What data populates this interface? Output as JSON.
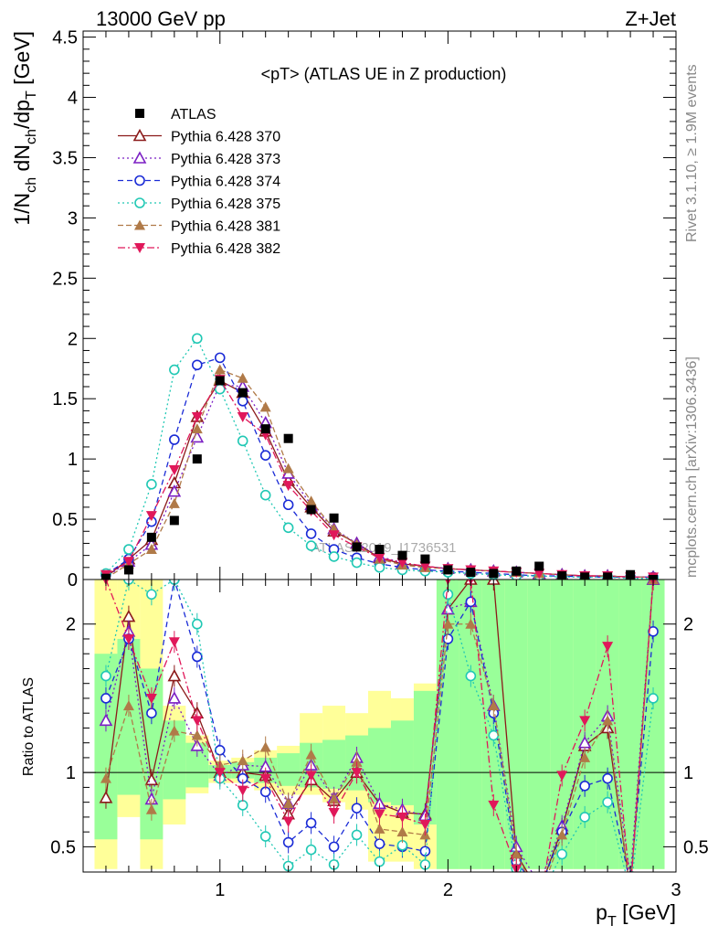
{
  "header": {
    "left": "13000 GeV pp",
    "right": "Z+Jet"
  },
  "side_text": {
    "top": "Rivet 3.1.10, ≥ 1.9M events",
    "bottom": "mcplots.cern.ch [arXiv:1306.3436]"
  },
  "watermark": "ATLAS_2019_I1736531",
  "chart_data": [
    {
      "type": "line",
      "title": "<pT> (ATLAS UE in Z production)",
      "ylabel": "1/N_ch dN_ch/dp_T [GeV]",
      "xlim": [
        0.4,
        3.0
      ],
      "ylim": [
        0,
        4.55
      ],
      "yticks": [
        "0",
        "0.5",
        "1",
        "1.5",
        "2",
        "2.5",
        "3",
        "3.5",
        "4",
        "4.5"
      ],
      "legend_position": "top-left",
      "x": [
        0.5,
        0.6,
        0.7,
        0.8,
        0.9,
        1.0,
        1.1,
        1.2,
        1.3,
        1.4,
        1.5,
        1.6,
        1.7,
        1.8,
        1.9,
        2.0,
        2.1,
        2.2,
        2.3,
        2.4,
        2.5,
        2.6,
        2.7,
        2.8,
        2.9
      ],
      "data": {
        "name": "ATLAS",
        "values": [
          0.01,
          0.08,
          0.35,
          0.49,
          1.0,
          1.65,
          1.55,
          1.25,
          1.17,
          0.58,
          0.51,
          0.27,
          0.25,
          0.2,
          0.17,
          0.08,
          0.06,
          0.05,
          0.07,
          0.11,
          0.03,
          0.02,
          0.02,
          0.04,
          0.0
        ]
      },
      "series": [
        {
          "name": "Pythia 6.428 370",
          "color": "#8b1a1a",
          "marker": "triangle-open",
          "dash": "",
          "values": [
            0.02,
            0.17,
            0.33,
            0.8,
            1.35,
            1.65,
            1.55,
            1.23,
            0.82,
            0.6,
            0.4,
            0.3,
            0.18,
            0.13,
            0.11,
            0.09,
            0.08,
            0.07,
            0.06,
            0.05,
            0.04,
            0.03,
            0.03,
            0.02,
            0.02
          ]
        },
        {
          "name": "Pythia 6.428 373",
          "color": "#7b1fc4",
          "marker": "triangle-open",
          "dash": "2,3",
          "values": [
            0.02,
            0.15,
            0.29,
            0.73,
            1.18,
            1.62,
            1.6,
            1.3,
            0.88,
            0.62,
            0.42,
            0.3,
            0.19,
            0.14,
            0.11,
            0.09,
            0.08,
            0.07,
            0.06,
            0.05,
            0.04,
            0.03,
            0.03,
            0.02,
            0.02
          ]
        },
        {
          "name": "Pythia 6.428 374",
          "color": "#1a2bd6",
          "marker": "circle-open",
          "dash": "6,4",
          "values": [
            0.04,
            0.17,
            0.48,
            1.16,
            1.78,
            1.84,
            1.48,
            1.03,
            0.62,
            0.38,
            0.25,
            0.18,
            0.13,
            0.1,
            0.08,
            0.07,
            0.06,
            0.05,
            0.04,
            0.03,
            0.03,
            0.02,
            0.02,
            0.02,
            0.02
          ]
        },
        {
          "name": "Pythia 6.428 375",
          "color": "#20c8b4",
          "marker": "circle-open",
          "dash": "2,3",
          "values": [
            0.05,
            0.25,
            0.79,
            1.74,
            2.0,
            1.58,
            1.15,
            0.7,
            0.43,
            0.28,
            0.19,
            0.14,
            0.1,
            0.08,
            0.07,
            0.06,
            0.05,
            0.04,
            0.03,
            0.03,
            0.02,
            0.02,
            0.02,
            0.01,
            0.01
          ]
        },
        {
          "name": "Pythia 6.428 381",
          "color": "#b07a48",
          "marker": "triangle-up",
          "dash": "6,3",
          "values": [
            0.01,
            0.13,
            0.25,
            0.63,
            1.25,
            1.74,
            1.67,
            1.43,
            0.92,
            0.65,
            0.42,
            0.29,
            0.17,
            0.12,
            0.1,
            0.09,
            0.08,
            0.07,
            0.06,
            0.05,
            0.04,
            0.03,
            0.03,
            0.02,
            0.02
          ]
        },
        {
          "name": "Pythia 6.428 382",
          "color": "#e0185a",
          "marker": "triangle-down",
          "dash": "8,3,2,3",
          "values": [
            0.04,
            0.15,
            0.53,
            0.91,
            1.35,
            1.66,
            1.35,
            1.2,
            0.78,
            0.57,
            0.37,
            0.27,
            0.18,
            0.14,
            0.11,
            0.09,
            0.08,
            0.07,
            0.06,
            0.05,
            0.04,
            0.03,
            0.03,
            0.02,
            0.02
          ]
        }
      ]
    },
    {
      "type": "line",
      "ylabel": "Ratio to ATLAS",
      "xlabel": "p_T [GeV]",
      "xlim": [
        0.4,
        3.0
      ],
      "ylim": [
        0.33,
        2.3
      ],
      "xticks": [
        "1",
        "2",
        "3"
      ],
      "yticks": [
        "0.5",
        "1",
        "2"
      ],
      "band_green": [
        [
          0.55,
          1.8
        ],
        [
          0.85,
          1.9
        ],
        [
          0.55,
          1.7
        ],
        [
          0.82,
          1.35
        ],
        [
          0.9,
          1.2
        ],
        [
          0.96,
          1.05
        ],
        [
          0.96,
          1.07
        ],
        [
          0.93,
          1.1
        ],
        [
          0.91,
          1.13
        ],
        [
          0.9,
          1.2
        ],
        [
          0.89,
          1.22
        ],
        [
          0.88,
          1.25
        ],
        [
          0.8,
          1.3
        ],
        [
          0.78,
          1.35
        ],
        [
          0.65,
          1.55
        ],
        [
          0.35,
          2.3
        ],
        [
          0.35,
          2.3
        ],
        [
          0.35,
          2.3
        ],
        [
          0.35,
          2.3
        ],
        [
          0.35,
          2.3
        ],
        [
          0.35,
          2.3
        ],
        [
          0.35,
          2.3
        ],
        [
          0.35,
          2.3
        ],
        [
          0.35,
          2.3
        ],
        [
          0.35,
          2.3
        ]
      ],
      "band_yellow": [
        [
          0.35,
          2.3
        ],
        [
          0.7,
          2.3
        ],
        [
          0.35,
          2.3
        ],
        [
          0.65,
          1.45
        ],
        [
          0.86,
          1.25
        ],
        [
          0.93,
          1.08
        ],
        [
          0.93,
          1.1
        ],
        [
          0.88,
          1.15
        ],
        [
          0.85,
          1.18
        ],
        [
          0.85,
          1.4
        ],
        [
          0.8,
          1.45
        ],
        [
          0.75,
          1.4
        ],
        [
          0.4,
          1.55
        ],
        [
          0.4,
          1.5
        ],
        [
          0.35,
          1.6
        ],
        [
          0.35,
          2.3
        ],
        [
          0.35,
          2.3
        ],
        [
          0.35,
          2.3
        ],
        [
          0.35,
          2.3
        ],
        [
          0.35,
          2.3
        ],
        [
          0.35,
          2.3
        ],
        [
          0.35,
          2.3
        ],
        [
          0.35,
          2.3
        ],
        [
          0.35,
          2.3
        ],
        [
          0.35,
          2.3
        ]
      ],
      "series": [
        {
          "name": "Pythia 6.428 370",
          "color": "#8b1a1a",
          "marker": "triangle-open",
          "dash": "",
          "values": [
            0.83,
            2.05,
            0.95,
            1.65,
            1.4,
            1.0,
            1.0,
            0.98,
            0.72,
            0.95,
            0.81,
            1.0,
            0.79,
            0.73,
            0.72,
            2.1,
            2.3,
            2.3,
            0.45,
            0.2,
            0.62,
            1.18,
            1.3,
            0.2,
            2.3
          ]
        },
        {
          "name": "Pythia 6.428 373",
          "color": "#7b1fc4",
          "marker": "triangle-open",
          "dash": "2,3",
          "values": [
            1.35,
            1.95,
            0.82,
            1.5,
            1.18,
            0.98,
            1.05,
            1.04,
            0.79,
            1.05,
            0.83,
            1.1,
            0.79,
            0.75,
            0.71,
            2.1,
            2.15,
            1.45,
            0.5,
            0.25,
            0.64,
            1.2,
            1.38,
            0.3,
            2.3
          ]
        },
        {
          "name": "Pythia 6.428 374",
          "color": "#1a2bd6",
          "marker": "circle-open",
          "dash": "6,4",
          "values": [
            1.5,
            1.9,
            1.4,
            2.3,
            1.78,
            1.15,
            0.96,
            0.87,
            0.53,
            0.66,
            0.5,
            0.76,
            0.52,
            0.5,
            0.47,
            1.9,
            2.15,
            1.4,
            0.4,
            0.2,
            0.6,
            0.91,
            0.96,
            0.25,
            1.95
          ]
        },
        {
          "name": "Pythia 6.428 375",
          "color": "#20c8b4",
          "marker": "circle-open",
          "dash": "2,3",
          "values": [
            1.65,
            2.3,
            2.2,
            2.3,
            2.0,
            0.96,
            0.78,
            0.57,
            0.37,
            0.48,
            0.38,
            0.58,
            0.4,
            0.51,
            0.38,
            2.2,
            1.65,
            1.25,
            0.35,
            0.15,
            0.45,
            0.7,
            0.8,
            0.2,
            1.5
          ]
        },
        {
          "name": "Pythia 6.428 381",
          "color": "#b07a48",
          "marker": "triangle-up",
          "dash": "6,3",
          "values": [
            0.96,
            1.45,
            0.75,
            1.28,
            1.25,
            1.05,
            1.08,
            1.17,
            0.79,
            1.12,
            0.82,
            1.07,
            0.62,
            0.6,
            0.58,
            2.0,
            2.0,
            1.45,
            0.45,
            0.15,
            0.58,
            1.1,
            1.35,
            0.2,
            2.3
          ]
        },
        {
          "name": "Pythia 6.428 382",
          "color": "#e0185a",
          "marker": "triangle-down",
          "dash": "8,3,2,3",
          "values": [
            2.3,
            1.9,
            1.5,
            1.88,
            1.35,
            1.0,
            0.88,
            0.96,
            0.67,
            0.98,
            0.73,
            1.0,
            0.72,
            0.7,
            0.65,
            2.3,
            2.3,
            0.78,
            0.35,
            0.1,
            0.98,
            1.35,
            1.85,
            0.2,
            2.3
          ]
        }
      ]
    }
  ]
}
